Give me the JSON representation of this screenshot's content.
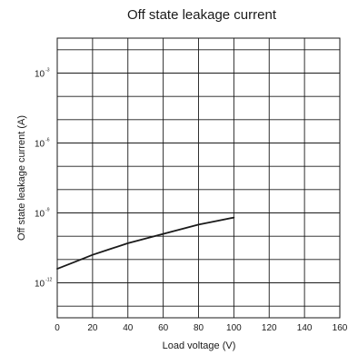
{
  "chart_data": {
    "type": "line",
    "title": "Off state leakage current",
    "xlabel": "Load voltage (V)",
    "ylabel": "Off state leakage current (A)",
    "xlim": [
      0,
      160
    ],
    "ylim_log10": [
      -13.5,
      -1.5
    ],
    "y_scale": "log",
    "grid": true,
    "x_ticks": [
      "0",
      "20",
      "40",
      "60",
      "80",
      "100",
      "120",
      "140",
      "160"
    ],
    "x_tick_values": [
      0,
      20,
      40,
      60,
      80,
      100,
      120,
      140,
      160
    ],
    "y_ticks": [
      {
        "base": "10",
        "exp": "-3",
        "value_log10": -3
      },
      {
        "base": "10",
        "exp": "-6",
        "value_log10": -6
      },
      {
        "base": "10",
        "exp": "-9",
        "value_log10": -9
      },
      {
        "base": "10",
        "exp": "-12",
        "value_log10": -12
      }
    ],
    "series": [
      {
        "color": "#1a1a1a",
        "x": [
          0,
          10,
          20,
          30,
          40,
          50,
          60,
          70,
          80,
          90,
          100
        ],
        "y_log10": [
          -11.4,
          -11.1,
          -10.8,
          -10.55,
          -10.3,
          -10.1,
          -9.9,
          -9.7,
          -9.5,
          -9.35,
          -9.2
        ]
      }
    ]
  }
}
